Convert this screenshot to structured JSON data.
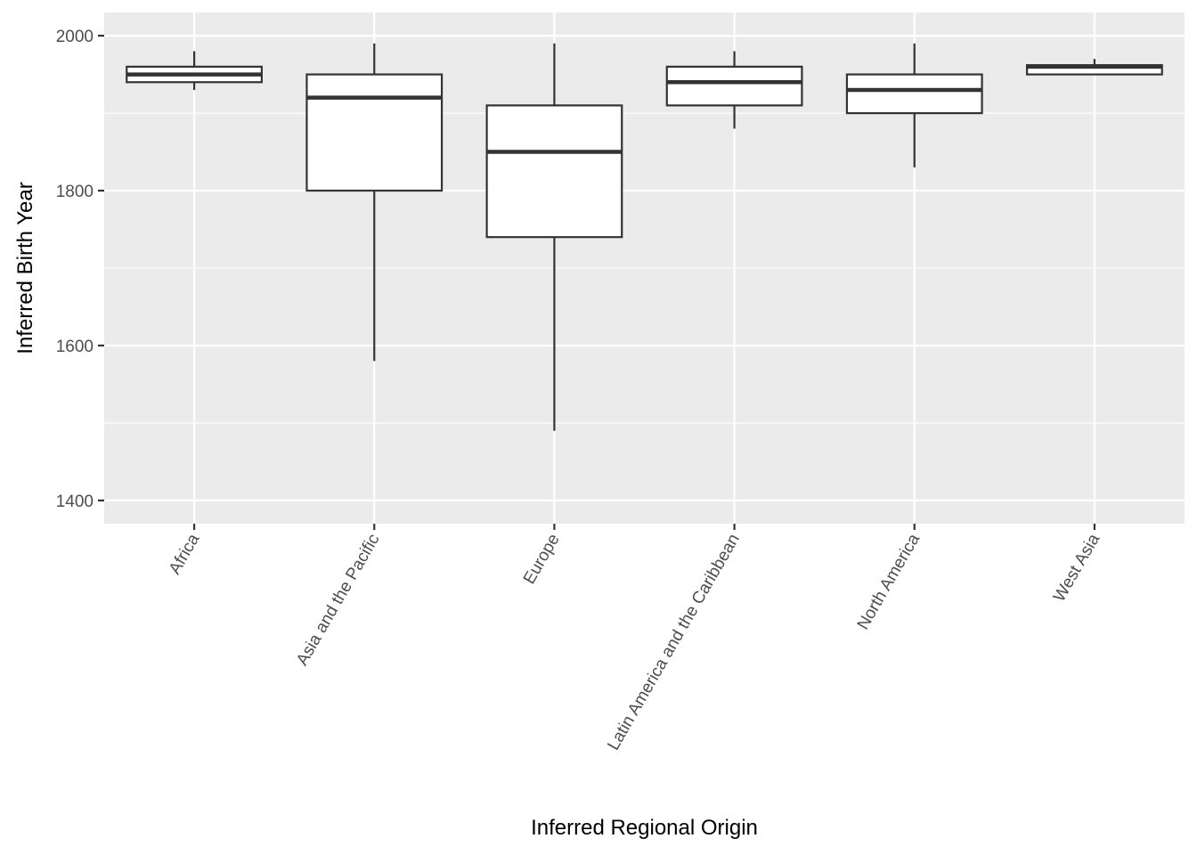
{
  "chart_data": {
    "type": "boxplot",
    "xlabel": "Inferred Regional Origin",
    "ylabel": "Inferred Birth Year",
    "ylim": [
      1370,
      2030
    ],
    "y_ticks": [
      1400,
      1600,
      1800,
      2000
    ],
    "y_minor_ticks": [
      1500,
      1700,
      1900
    ],
    "grid": true,
    "x_tick_rotation_deg": -60,
    "categories": [
      "Africa",
      "Asia and the Pacific",
      "Europe",
      "Latin America and the Caribbean",
      "North America",
      "West Asia"
    ],
    "boxes": [
      {
        "category": "Africa",
        "whisker_low": 1930,
        "q1": 1940,
        "median": 1950,
        "q3": 1960,
        "whisker_high": 1980
      },
      {
        "category": "Asia and the Pacific",
        "whisker_low": 1580,
        "q1": 1800,
        "median": 1920,
        "q3": 1950,
        "whisker_high": 1990
      },
      {
        "category": "Europe",
        "whisker_low": 1490,
        "q1": 1740,
        "median": 1850,
        "q3": 1910,
        "whisker_high": 1990
      },
      {
        "category": "Latin America and the Caribbean",
        "whisker_low": 1880,
        "q1": 1910,
        "median": 1940,
        "q3": 1960,
        "whisker_high": 1980
      },
      {
        "category": "North America",
        "whisker_low": 1830,
        "q1": 1900,
        "median": 1930,
        "q3": 1950,
        "whisker_high": 1990
      },
      {
        "category": "West Asia",
        "whisker_low": 1950,
        "q1": 1950,
        "median": 1960,
        "q3": 1962,
        "whisker_high": 1970
      }
    ],
    "colors": {
      "panel_background": "#ebebeb",
      "grid_line": "#ffffff",
      "box_fill": "#ffffff",
      "box_stroke": "#333333",
      "tick_label": "#4d4d4d",
      "axis_title": "#000000"
    }
  }
}
